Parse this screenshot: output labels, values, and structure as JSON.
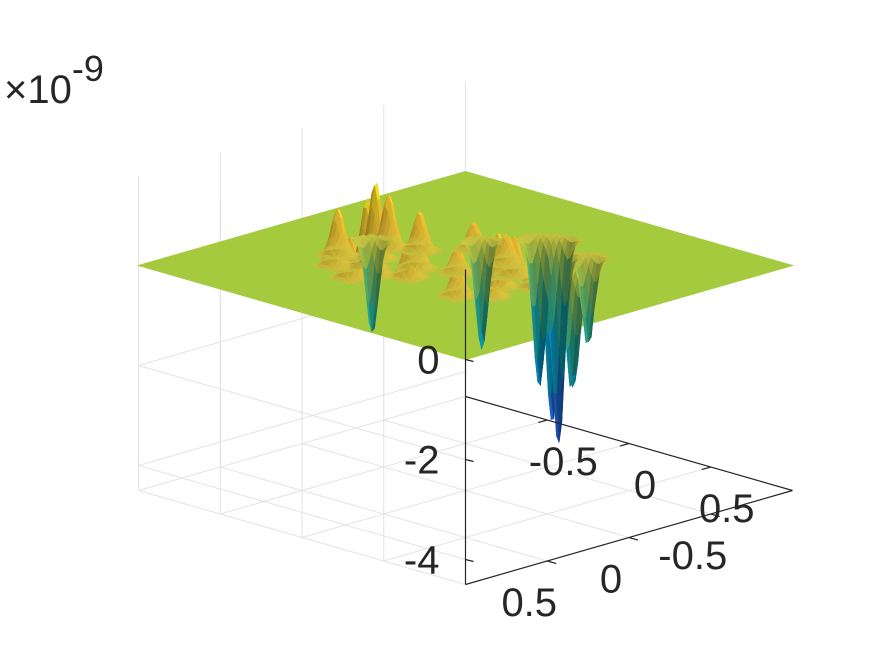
{
  "chart_data": {
    "type": "surface",
    "title": "",
    "xlabel": "",
    "ylabel": "",
    "zlabel": "",
    "xlim": [
      -1,
      1
    ],
    "ylim": [
      -1,
      1
    ],
    "zlim": [
      -4.5,
      1.8
    ],
    "z_multiplier_text": "×10",
    "z_multiplier_exponent": "-9",
    "z_ticks": [
      {
        "value": 0,
        "label": "0"
      },
      {
        "value": -2,
        "label": "-2"
      },
      {
        "value": -4,
        "label": "-4"
      }
    ],
    "x_ticks": [
      {
        "value": -0.5,
        "label": "-0.5"
      },
      {
        "value": 0,
        "label": "0"
      },
      {
        "value": 0.5,
        "label": "0.5"
      }
    ],
    "y_ticks": [
      {
        "value": 0.5,
        "label": "0.5"
      },
      {
        "value": 0,
        "label": "0"
      },
      {
        "value": -0.5,
        "label": "-0.5"
      }
    ],
    "grid": true,
    "colormap": "parula",
    "plane_color": "#a5ca3e",
    "peaks": [
      {
        "x": -0.35,
        "y": 0.2,
        "z": 1.55
      },
      {
        "x": -0.28,
        "y": 0.32,
        "z": 1.4
      },
      {
        "x": -0.42,
        "y": 0.05,
        "z": 1.1
      },
      {
        "x": -0.18,
        "y": 0.38,
        "z": 1.2
      },
      {
        "x": -0.12,
        "y": 0.18,
        "z": 0.9
      },
      {
        "x": -0.5,
        "y": 0.28,
        "z": 0.95
      },
      {
        "x": -0.3,
        "y": -0.02,
        "z": 0.8
      },
      {
        "x": -0.22,
        "y": 0.48,
        "z": 0.85
      },
      {
        "x": -0.05,
        "y": 0.3,
        "z": 0.75
      },
      {
        "x": 0.32,
        "y": 0.12,
        "z": 1.1
      },
      {
        "x": 0.4,
        "y": 0.25,
        "z": 0.95
      },
      {
        "x": 0.25,
        "y": -0.05,
        "z": 0.8
      },
      {
        "x": 0.45,
        "y": 0.02,
        "z": 0.7
      },
      {
        "x": 0.1,
        "y": -0.15,
        "z": 0.6
      },
      {
        "x": -0.15,
        "y": -0.2,
        "z": 0.55
      },
      {
        "x": 0.05,
        "y": 0.1,
        "z": 0.5
      },
      {
        "x": 0.3,
        "y": 0.35,
        "z": 0.65
      },
      {
        "x": -0.4,
        "y": 0.4,
        "z": 0.7
      }
    ],
    "troughs": [
      {
        "x": 0.02,
        "y": -0.55,
        "z": -4.2
      },
      {
        "x": 0.08,
        "y": -0.45,
        "z": -3.6
      },
      {
        "x": -0.05,
        "y": -0.5,
        "z": -3.0
      },
      {
        "x": 0.18,
        "y": -0.4,
        "z": -2.6
      },
      {
        "x": -0.2,
        "y": -0.3,
        "z": -2.2
      },
      {
        "x": 0.4,
        "y": -0.25,
        "z": -2.4
      },
      {
        "x": 0.48,
        "y": -0.18,
        "z": -2.2
      },
      {
        "x": -0.55,
        "y": 0.02,
        "z": -1.9
      },
      {
        "x": 0.3,
        "y": -0.45,
        "z": -1.8
      }
    ]
  }
}
